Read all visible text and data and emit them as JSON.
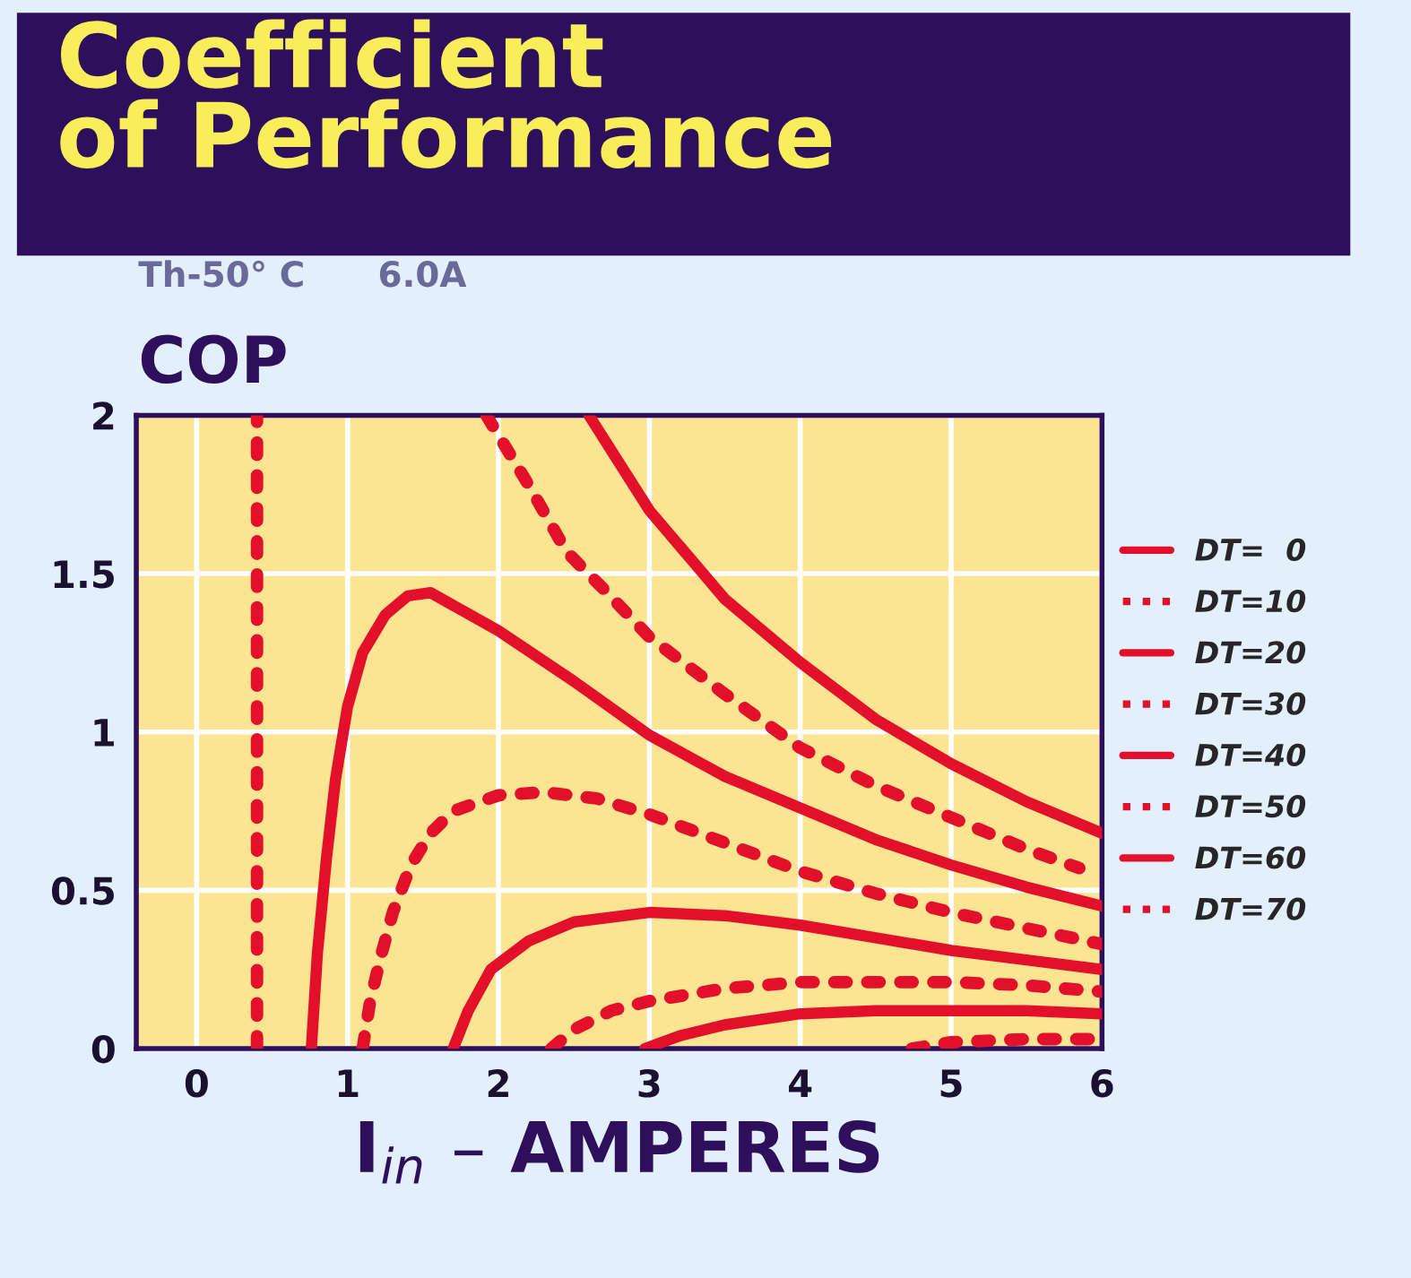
{
  "chart_data": {
    "type": "line",
    "title": "Coefficient\nof Performance",
    "subtitle": "Th-50° C      6.0A",
    "ylabel": "COP",
    "xlabel": "I$_{in}$ – AMPERES",
    "xlim": [
      -0.4,
      6
    ],
    "ylim": [
      0,
      2
    ],
    "xticks": [
      0,
      1,
      2,
      3,
      4,
      5,
      6
    ],
    "yticks": [
      0,
      0.5,
      1,
      1.5,
      2
    ],
    "grid": true,
    "legend": "right",
    "marker": "none",
    "ref_lines": [
      {
        "axis": "x",
        "value": 0.4,
        "label": null,
        "color": "#e3102b",
        "line_style": "dotted"
      }
    ],
    "series": [
      {
        "name": "DT=  0",
        "color": "#e3102b",
        "line_style": "solid",
        "x": [
          2.6,
          3.0,
          3.5,
          4,
          4.5,
          5,
          5.5,
          6
        ],
        "values": [
          2.0,
          1.7,
          1.42,
          1.22,
          1.04,
          0.9,
          0.78,
          0.68
        ]
      },
      {
        "name": "DT=10",
        "color": "#e3102b",
        "line_style": "dotted",
        "x": [
          1.92,
          2.2,
          2.45,
          2.7,
          3.0,
          3.5,
          4,
          4.5,
          5,
          5.5,
          5.85
        ],
        "values": [
          2.0,
          1.78,
          1.57,
          1.45,
          1.3,
          1.12,
          0.95,
          0.83,
          0.73,
          0.63,
          0.57
        ]
      },
      {
        "name": "DT=20",
        "color": "#e3102b",
        "line_style": "solid",
        "x": [
          0.76,
          0.8,
          0.86,
          0.92,
          1.0,
          1.1,
          1.25,
          1.4,
          1.55,
          1.7,
          2.0,
          2.5,
          3.0,
          3.5,
          4,
          4.5,
          5,
          5.5,
          6
        ],
        "values": [
          0,
          0.3,
          0.6,
          0.85,
          1.08,
          1.25,
          1.37,
          1.43,
          1.44,
          1.4,
          1.32,
          1.16,
          0.99,
          0.86,
          0.76,
          0.66,
          0.58,
          0.51,
          0.45
        ]
      },
      {
        "name": "DT=30",
        "color": "#e3102b",
        "line_style": "dotted",
        "x": [
          1.1,
          1.15,
          1.22,
          1.3,
          1.42,
          1.55,
          1.7,
          2.0,
          2.3,
          2.65,
          3.0,
          3.5,
          4,
          4.5,
          5,
          5.5,
          6
        ],
        "values": [
          0,
          0.15,
          0.29,
          0.43,
          0.58,
          0.68,
          0.75,
          0.8,
          0.81,
          0.79,
          0.74,
          0.65,
          0.56,
          0.49,
          0.43,
          0.38,
          0.33
        ]
      },
      {
        "name": "DT=40",
        "color": "#e3102b",
        "line_style": "solid",
        "x": [
          1.7,
          1.8,
          1.95,
          2.2,
          2.5,
          3.0,
          3.5,
          4,
          4.5,
          5,
          5.5,
          6
        ],
        "values": [
          0,
          0.12,
          0.25,
          0.34,
          0.4,
          0.43,
          0.42,
          0.39,
          0.35,
          0.31,
          0.28,
          0.25
        ]
      },
      {
        "name": "DT=50",
        "color": "#e3102b",
        "line_style": "dotted",
        "x": [
          2.35,
          2.5,
          2.75,
          3.0,
          3.5,
          4,
          4.5,
          5,
          5.5,
          6
        ],
        "values": [
          0,
          0.06,
          0.12,
          0.15,
          0.19,
          0.21,
          0.21,
          0.21,
          0.2,
          0.18
        ]
      },
      {
        "name": "DT=60",
        "color": "#e3102b",
        "line_style": "solid",
        "x": [
          2.97,
          3.2,
          3.5,
          4,
          4.5,
          5,
          5.5,
          6
        ],
        "values": [
          0,
          0.04,
          0.075,
          0.11,
          0.12,
          0.12,
          0.12,
          0.11
        ]
      },
      {
        "name": "DT=70",
        "color": "#e3102b",
        "line_style": "dotted",
        "x": [
          4.74,
          5.0,
          5.5,
          6
        ],
        "values": [
          0,
          0.02,
          0.03,
          0.03
        ]
      }
    ]
  }
}
